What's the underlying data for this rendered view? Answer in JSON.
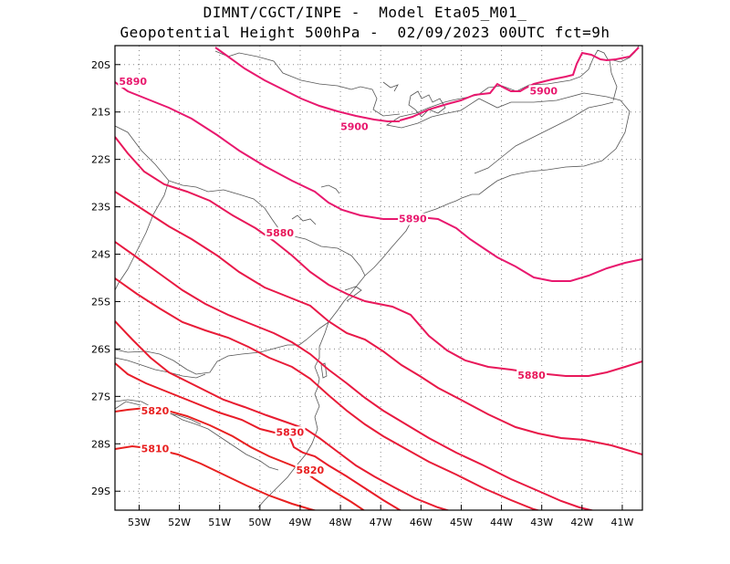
{
  "title": {
    "line1": "DIMNT/CGCT/INPE -  Model Eta05_M01_",
    "line2": "Geopotential Height 500hPa -  02/09/2023 00UTC fct=9h"
  },
  "map": {
    "lon_range": [
      -53.6,
      -40.5
    ],
    "lat_range": [
      -29.4,
      -19.6
    ],
    "lon_ticks": [
      {
        "value": -53,
        "label": "53W"
      },
      {
        "value": -52,
        "label": "52W"
      },
      {
        "value": -51,
        "label": "51W"
      },
      {
        "value": -50,
        "label": "50W"
      },
      {
        "value": -49,
        "label": "49W"
      },
      {
        "value": -48,
        "label": "48W"
      },
      {
        "value": -47,
        "label": "47W"
      },
      {
        "value": -46,
        "label": "46W"
      },
      {
        "value": -45,
        "label": "45W"
      },
      {
        "value": -44,
        "label": "44W"
      },
      {
        "value": -43,
        "label": "43W"
      },
      {
        "value": -42,
        "label": "42W"
      },
      {
        "value": -41,
        "label": "41W"
      }
    ],
    "lat_ticks": [
      {
        "value": -20,
        "label": "20S"
      },
      {
        "value": -21,
        "label": "21S"
      },
      {
        "value": -22,
        "label": "22S"
      },
      {
        "value": -23,
        "label": "23S"
      },
      {
        "value": -24,
        "label": "24S"
      },
      {
        "value": -25,
        "label": "25S"
      },
      {
        "value": -26,
        "label": "26S"
      },
      {
        "value": -27,
        "label": "27S"
      },
      {
        "value": -28,
        "label": "28S"
      },
      {
        "value": -29,
        "label": "29S"
      }
    ],
    "grid": "dotted",
    "colors": {
      "c5900": "#e8186e",
      "c5890": "#e8186e",
      "c5880": "#e8185a",
      "c5870": "#e81848",
      "c5860": "#e81840",
      "c5850": "#e81c38",
      "c5840": "#e81c30",
      "c5830": "#e81c28",
      "c5820": "#e82020",
      "c5810": "#e82020",
      "boundary": "#555555"
    },
    "contour_labels": [
      {
        "text": "5900",
        "lon": -43.3,
        "lat": -20.55,
        "color": "c5900"
      },
      {
        "text": "5900",
        "lon": -48.0,
        "lat": -21.3,
        "color": "c5900"
      },
      {
        "text": "5890",
        "lon": -53.5,
        "lat": -20.35,
        "color": "c5900"
      },
      {
        "text": "5890",
        "lon": -46.55,
        "lat": -23.25,
        "color": "c5890"
      },
      {
        "text": "5880",
        "lon": -49.85,
        "lat": -23.55,
        "color": "c5880"
      },
      {
        "text": "5880",
        "lon": -43.6,
        "lat": -26.55,
        "color": "c5880"
      },
      {
        "text": "5830",
        "lon": -49.6,
        "lat": -27.75,
        "color": "c5830"
      },
      {
        "text": "5820",
        "lon": -49.1,
        "lat": -28.55,
        "color": "c5820"
      },
      {
        "text": "5820",
        "lon": -52.95,
        "lat": -27.3,
        "color": "c5820"
      },
      {
        "text": "5810",
        "lon": -52.95,
        "lat": -28.1,
        "color": "c5810"
      }
    ]
  }
}
